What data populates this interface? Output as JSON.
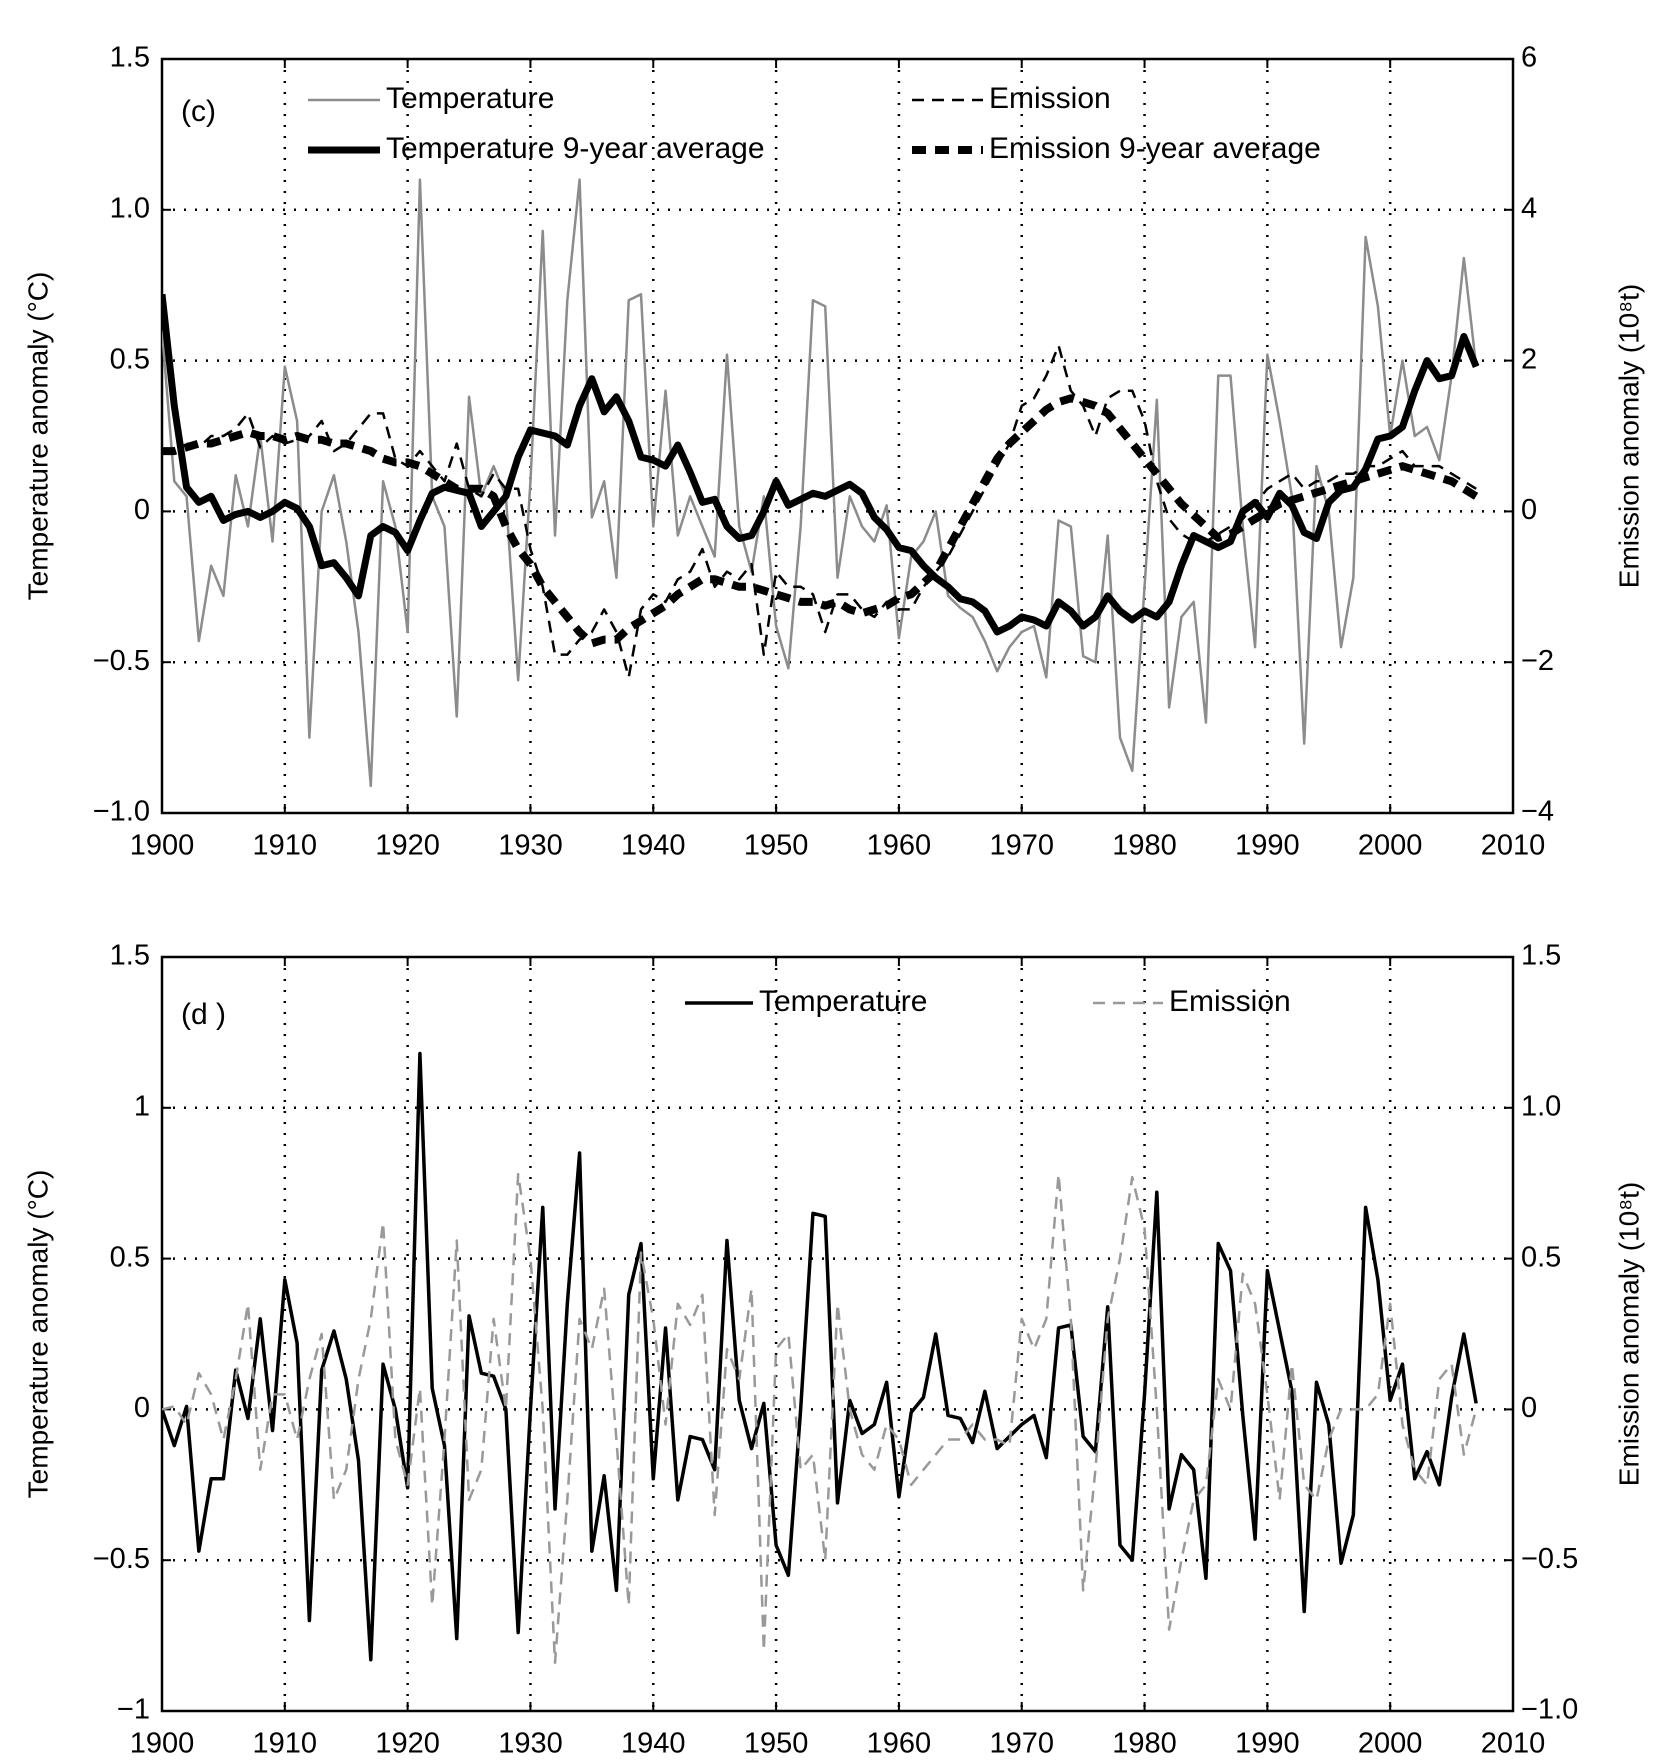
{
  "chart_data": [
    {
      "type": "line",
      "panel_label": "(c)",
      "ylabel": "Temperature anomaly (°C)",
      "y2label": "Emission anomaly (10⁸t)",
      "x": [
        1900,
        1901,
        1902,
        1903,
        1904,
        1905,
        1906,
        1907,
        1908,
        1909,
        1910,
        1911,
        1912,
        1913,
        1914,
        1915,
        1916,
        1917,
        1918,
        1919,
        1920,
        1921,
        1922,
        1923,
        1924,
        1925,
        1926,
        1927,
        1928,
        1929,
        1930,
        1931,
        1932,
        1933,
        1934,
        1935,
        1936,
        1937,
        1938,
        1939,
        1940,
        1941,
        1942,
        1943,
        1944,
        1945,
        1946,
        1947,
        1948,
        1949,
        1950,
        1951,
        1952,
        1953,
        1954,
        1955,
        1956,
        1957,
        1958,
        1959,
        1960,
        1961,
        1962,
        1963,
        1964,
        1965,
        1966,
        1967,
        1968,
        1969,
        1970,
        1971,
        1972,
        1973,
        1974,
        1975,
        1976,
        1977,
        1978,
        1979,
        1980,
        1981,
        1982,
        1983,
        1984,
        1985,
        1986,
        1987,
        1988,
        1989,
        1990,
        1991,
        1992,
        1993,
        1994,
        1995,
        1996,
        1997,
        1998,
        1999,
        2000,
        2001,
        2002,
        2003,
        2004,
        2005,
        2006,
        2007
      ],
      "xlim": [
        1900,
        2010
      ],
      "xticks": [
        1900,
        1910,
        1920,
        1930,
        1940,
        1950,
        1960,
        1970,
        1980,
        1990,
        2000,
        2010
      ],
      "ylim": [
        -1,
        1.5
      ],
      "yticks": [
        {
          "value": -1,
          "label": "−1.0"
        },
        {
          "value": -0.5,
          "label": "−0.5"
        },
        0,
        0.5,
        {
          "value": 1,
          "label": "1.0"
        },
        1.5
      ],
      "y2lim": [
        -4,
        6
      ],
      "y2ticks": [
        {
          "value": -4,
          "label": "−4"
        },
        {
          "value": -2,
          "label": "−2"
        },
        0,
        2,
        4,
        6
      ],
      "grid": true,
      "series": [
        {
          "name": "Temperature",
          "color": "#8c8c8c",
          "line_style": "solid",
          "linewidth": 2.5,
          "values": [
            0.6,
            0.1,
            0.05,
            -0.43,
            -0.18,
            -0.28,
            0.12,
            -0.05,
            0.25,
            -0.1,
            0.48,
            0.3,
            -0.75,
            0.0,
            0.12,
            -0.1,
            -0.4,
            -0.91,
            0.1,
            -0.05,
            -0.4,
            1.1,
            0.05,
            -0.05,
            -0.68,
            0.38,
            0.05,
            0.15,
            0.05,
            -0.56,
            0.1,
            0.93,
            -0.08,
            0.7,
            1.1,
            -0.02,
            0.1,
            -0.22,
            0.7,
            0.72,
            -0.05,
            0.4,
            -0.08,
            0.05,
            -0.05,
            -0.15,
            0.52,
            -0.05,
            -0.2,
            0.05,
            -0.38,
            -0.52,
            -0.05,
            0.7,
            0.68,
            -0.22,
            0.05,
            -0.05,
            -0.1,
            0.02,
            -0.42,
            -0.15,
            -0.1,
            0.0,
            -0.28,
            -0.32,
            -0.35,
            -0.43,
            -0.53,
            -0.45,
            -0.4,
            -0.38,
            -0.55,
            -0.03,
            -0.05,
            -0.48,
            -0.5,
            -0.08,
            -0.75,
            -0.86,
            -0.25,
            0.37,
            -0.65,
            -0.35,
            -0.3,
            -0.7,
            0.45,
            0.45,
            -0.05,
            -0.45,
            0.52,
            0.3,
            0.05,
            -0.77,
            0.15,
            0.0,
            -0.45,
            -0.22,
            0.91,
            0.68,
            0.25,
            0.5,
            0.25,
            0.28,
            0.17,
            0.45,
            0.84,
            0.48
          ]
        },
        {
          "name": "Temperature 9-year average",
          "color": "#000000",
          "line_style": "solid",
          "linewidth": 7,
          "values": [
            0.72,
            0.35,
            0.08,
            0.03,
            0.05,
            -0.03,
            -0.01,
            0.0,
            -0.02,
            0.0,
            0.03,
            0.01,
            -0.05,
            -0.18,
            -0.17,
            -0.22,
            -0.28,
            -0.08,
            -0.05,
            -0.07,
            -0.13,
            -0.03,
            0.06,
            0.08,
            0.07,
            0.06,
            -0.05,
            0.0,
            0.05,
            0.18,
            0.27,
            0.26,
            0.25,
            0.22,
            0.35,
            0.44,
            0.33,
            0.38,
            0.3,
            0.18,
            0.17,
            0.15,
            0.22,
            0.13,
            0.03,
            0.04,
            -0.05,
            -0.09,
            -0.08,
            0.0,
            0.1,
            0.02,
            0.04,
            0.06,
            0.05,
            0.07,
            0.09,
            0.06,
            -0.02,
            -0.06,
            -0.12,
            -0.13,
            -0.18,
            -0.22,
            -0.25,
            -0.29,
            -0.3,
            -0.33,
            -0.4,
            -0.38,
            -0.35,
            -0.36,
            -0.38,
            -0.3,
            -0.33,
            -0.38,
            -0.35,
            -0.28,
            -0.33,
            -0.36,
            -0.33,
            -0.35,
            -0.3,
            -0.18,
            -0.08,
            -0.1,
            -0.12,
            -0.1,
            0.0,
            0.03,
            -0.02,
            0.06,
            0.02,
            -0.07,
            -0.09,
            0.03,
            0.07,
            0.08,
            0.14,
            0.24,
            0.25,
            0.28,
            0.4,
            0.5,
            0.44,
            0.45,
            0.58,
            0.48
          ]
        },
        {
          "name": "Emission",
          "color": "#000000",
          "line_style": "dashed",
          "linewidth": 2.5,
          "axis": "y2",
          "values": [
            null,
            null,
            0.9,
            0.85,
            1.0,
            1.0,
            1.1,
            1.3,
            0.85,
            1.0,
            0.9,
            0.95,
            1.0,
            1.2,
            0.8,
            0.9,
            1.1,
            1.3,
            1.3,
            0.7,
            0.6,
            0.8,
            0.6,
            0.4,
            0.9,
            0.3,
            0.2,
            0.5,
            0.3,
            0.3,
            -0.5,
            -1.0,
            -1.9,
            -1.9,
            -1.7,
            -1.6,
            -1.3,
            -1.6,
            -2.2,
            -1.3,
            -1.1,
            -1.2,
            -0.9,
            -0.8,
            -0.5,
            -1.0,
            -0.8,
            -0.9,
            -0.7,
            -1.9,
            -0.8,
            -1.0,
            -1.0,
            -1.1,
            -1.6,
            -1.1,
            -1.1,
            -1.3,
            -1.4,
            -1.2,
            -1.3,
            -1.3,
            -1.0,
            -0.8,
            -0.6,
            -0.3,
            0.0,
            0.3,
            0.6,
            0.9,
            1.4,
            1.5,
            1.8,
            2.2,
            1.6,
            1.4,
            1.0,
            1.5,
            1.6,
            1.6,
            1.2,
            0.4,
            -0.1,
            -0.3,
            -0.4,
            -0.4,
            -0.3,
            -0.2,
            -0.1,
            0.1,
            0.3,
            0.4,
            0.5,
            0.3,
            0.4,
            0.4,
            0.5,
            0.5,
            0.6,
            0.6,
            0.7,
            0.8,
            0.6,
            0.6,
            0.6,
            0.5,
            0.4,
            0.3
          ]
        },
        {
          "name": "Emission 9-year average",
          "color": "#000000",
          "line_style": "dashed",
          "linewidth": 8,
          "axis": "y2",
          "values": [
            0.8,
            0.8,
            0.85,
            0.9,
            0.9,
            0.95,
            1.0,
            1.05,
            1.0,
            1.0,
            0.95,
            1.0,
            0.95,
            0.95,
            0.9,
            0.9,
            0.85,
            0.8,
            0.7,
            0.65,
            0.65,
            0.6,
            0.5,
            0.4,
            0.3,
            0.3,
            0.3,
            0.2,
            -0.2,
            -0.5,
            -0.7,
            -1.0,
            -1.2,
            -1.4,
            -1.6,
            -1.75,
            -1.7,
            -1.7,
            -1.55,
            -1.45,
            -1.35,
            -1.25,
            -1.1,
            -1.0,
            -0.9,
            -0.9,
            -0.95,
            -1.0,
            -1.0,
            -1.05,
            -1.1,
            -1.15,
            -1.2,
            -1.2,
            -1.25,
            -1.2,
            -1.3,
            -1.35,
            -1.3,
            -1.25,
            -1.15,
            -1.1,
            -0.95,
            -0.8,
            -0.5,
            -0.2,
            0.1,
            0.4,
            0.7,
            0.9,
            1.05,
            1.2,
            1.35,
            1.45,
            1.5,
            1.45,
            1.4,
            1.3,
            1.1,
            0.9,
            0.7,
            0.5,
            0.3,
            0.1,
            -0.05,
            -0.2,
            -0.35,
            -0.3,
            -0.2,
            -0.1,
            0.0,
            0.1,
            0.15,
            0.2,
            0.25,
            0.3,
            0.35,
            0.4,
            0.45,
            0.5,
            0.55,
            0.6,
            0.55,
            0.5,
            0.45,
            0.4,
            0.3,
            0.2
          ]
        }
      ]
    },
    {
      "type": "line",
      "panel_label": "(d )",
      "ylabel": "Temperature anomaly (°C)",
      "y2label": "Emission anomaly (10⁸t)",
      "x": [
        1900,
        1901,
        1902,
        1903,
        1904,
        1905,
        1906,
        1907,
        1908,
        1909,
        1910,
        1911,
        1912,
        1913,
        1914,
        1915,
        1916,
        1917,
        1918,
        1919,
        1920,
        1921,
        1922,
        1923,
        1924,
        1925,
        1926,
        1927,
        1928,
        1929,
        1930,
        1931,
        1932,
        1933,
        1934,
        1935,
        1936,
        1937,
        1938,
        1939,
        1940,
        1941,
        1942,
        1943,
        1944,
        1945,
        1946,
        1947,
        1948,
        1949,
        1950,
        1951,
        1952,
        1953,
        1954,
        1955,
        1956,
        1957,
        1958,
        1959,
        1960,
        1961,
        1962,
        1963,
        1964,
        1965,
        1966,
        1967,
        1968,
        1969,
        1970,
        1971,
        1972,
        1973,
        1974,
        1975,
        1976,
        1977,
        1978,
        1979,
        1980,
        1981,
        1982,
        1983,
        1984,
        1985,
        1986,
        1987,
        1988,
        1989,
        1990,
        1991,
        1992,
        1993,
        1994,
        1995,
        1996,
        1997,
        1998,
        1999,
        2000,
        2001,
        2002,
        2003,
        2004,
        2005,
        2006,
        2007
      ],
      "xlim": [
        1900,
        2010
      ],
      "xticks": [
        1900,
        1910,
        1920,
        1930,
        1940,
        1950,
        1960,
        1970,
        1980,
        1990,
        2000,
        2010
      ],
      "ylim": [
        -1,
        1.5
      ],
      "yticks": [
        {
          "value": -1,
          "label": "−1"
        },
        {
          "value": -0.5,
          "label": "−0.5"
        },
        0,
        0.5,
        1,
        1.5
      ],
      "y2lim": [
        -1,
        1.5
      ],
      "y2ticks": [
        {
          "value": -1,
          "label": "−1.0"
        },
        {
          "value": -0.5,
          "label": "−0.5"
        },
        0,
        0.5,
        {
          "value": 1,
          "label": "1.0"
        },
        1.5
      ],
      "grid": true,
      "series": [
        {
          "name": "Temperature",
          "color": "#000000",
          "line_style": "solid",
          "linewidth": 3.5,
          "values": [
            0.0,
            -0.12,
            0.01,
            -0.47,
            -0.23,
            -0.23,
            0.13,
            -0.03,
            0.3,
            -0.07,
            0.43,
            0.22,
            -0.7,
            0.13,
            0.26,
            0.1,
            -0.17,
            -0.83,
            0.15,
            0.0,
            -0.26,
            1.18,
            0.07,
            -0.12,
            -0.76,
            0.31,
            0.12,
            0.11,
            0.0,
            -0.74,
            0.0,
            0.67,
            -0.33,
            0.35,
            0.85,
            -0.47,
            -0.22,
            -0.6,
            0.38,
            0.55,
            -0.23,
            0.27,
            -0.3,
            -0.09,
            -0.1,
            -0.2,
            0.56,
            0.03,
            -0.13,
            0.02,
            -0.45,
            -0.55,
            0.0,
            0.65,
            0.64,
            -0.31,
            0.03,
            -0.08,
            -0.05,
            0.09,
            -0.29,
            -0.01,
            0.04,
            0.25,
            -0.02,
            -0.03,
            -0.11,
            0.06,
            -0.13,
            -0.09,
            -0.05,
            -0.02,
            -0.16,
            0.27,
            0.28,
            -0.09,
            -0.14,
            0.34,
            -0.45,
            -0.5,
            0.05,
            0.72,
            -0.33,
            -0.15,
            -0.2,
            -0.56,
            0.55,
            0.46,
            -0.02,
            -0.43,
            0.46,
            0.26,
            0.06,
            -0.67,
            0.09,
            -0.05,
            -0.51,
            -0.35,
            0.67,
            0.43,
            0.03,
            0.15,
            -0.23,
            -0.14,
            -0.25,
            0.04,
            0.25,
            0.02
          ]
        },
        {
          "name": "Emission",
          "color": "#999999",
          "line_style": "dashed",
          "linewidth": 2.5,
          "axis": "y2",
          "values": [
            0.0,
            0.01,
            -0.05,
            0.12,
            0.05,
            -0.1,
            0.1,
            0.35,
            -0.2,
            0.05,
            0.05,
            -0.1,
            0.1,
            0.25,
            -0.3,
            -0.2,
            0.1,
            0.3,
            0.62,
            -0.1,
            -0.25,
            0.07,
            -0.65,
            -0.1,
            0.56,
            -0.3,
            -0.2,
            0.3,
            0.0,
            0.78,
            0.5,
            0.0,
            -0.84,
            -0.3,
            0.3,
            0.2,
            0.4,
            -0.1,
            -0.65,
            0.52,
            0.3,
            -0.05,
            0.35,
            0.28,
            0.38,
            -0.35,
            0.2,
            0.1,
            0.4,
            -0.8,
            0.2,
            0.25,
            -0.2,
            -0.15,
            -0.5,
            0.35,
            0.0,
            -0.15,
            -0.2,
            -0.05,
            -0.1,
            -0.25,
            -0.2,
            -0.15,
            -0.1,
            -0.1,
            -0.05,
            -0.1,
            -0.1,
            -0.12,
            0.3,
            0.2,
            0.3,
            0.78,
            0.3,
            -0.6,
            -0.2,
            0.3,
            0.5,
            0.77,
            0.6,
            0.0,
            -0.73,
            -0.5,
            -0.3,
            -0.25,
            0.1,
            0.0,
            0.45,
            0.35,
            0.05,
            -0.3,
            0.15,
            -0.25,
            -0.3,
            -0.1,
            0.0,
            0.0,
            0.0,
            0.05,
            0.35,
            -0.05,
            -0.2,
            -0.25,
            0.1,
            0.15,
            -0.15,
            0.0
          ]
        }
      ]
    }
  ]
}
